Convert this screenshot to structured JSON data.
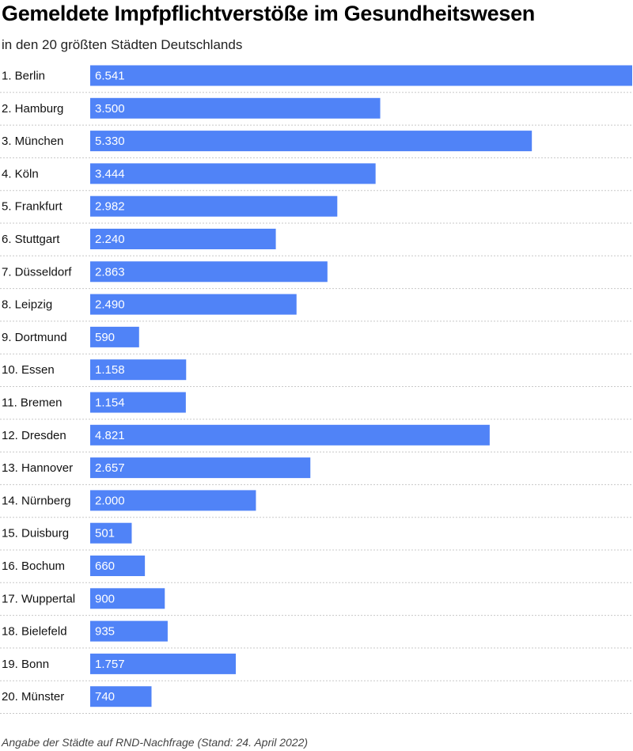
{
  "title": "Gemeldete Impfpflichtverstöße im Gesundheitswesen",
  "subtitle": "in den 20 größten Städten Deutschlands",
  "footnote": "Angabe der Städte auf RND-Nachfrage (Stand: 24. April 2022)",
  "colors": {
    "bar": "#5083f7"
  },
  "chart_data": {
    "type": "bar",
    "orientation": "horizontal",
    "title": "Gemeldete Impfpflichtverstöße im Gesundheitswesen",
    "subtitle": "in den 20 größten Städten Deutschlands",
    "categories": [
      "1. Berlin",
      "2. Hamburg",
      "3. München",
      "4. Köln",
      "5. Frankfurt",
      "6. Stuttgart",
      "7. Düsseldorf",
      "8. Leipzig",
      "9. Dortmund",
      "10. Essen",
      "11. Bremen",
      "12. Dresden",
      "13. Hannover",
      "14. Nürnberg",
      "15. Duisburg",
      "16. Bochum",
      "17. Wuppertal",
      "18. Bielefeld",
      "19. Bonn",
      "20. Münster"
    ],
    "values": [
      6541,
      3500,
      5330,
      3444,
      2982,
      2240,
      2863,
      2490,
      590,
      1158,
      1154,
      4821,
      2657,
      2000,
      501,
      660,
      900,
      935,
      1757,
      740
    ],
    "value_labels": [
      "6.541",
      "3.500",
      "5.330",
      "3.444",
      "2.982",
      "2.240",
      "2.863",
      "2.490",
      "590",
      "1.158",
      "1.154",
      "4.821",
      "2.657",
      "2.000",
      "501",
      "660",
      "900",
      "935",
      "1.757",
      "740"
    ],
    "xlim": [
      0,
      6541
    ],
    "grid": false,
    "legend": "none"
  }
}
